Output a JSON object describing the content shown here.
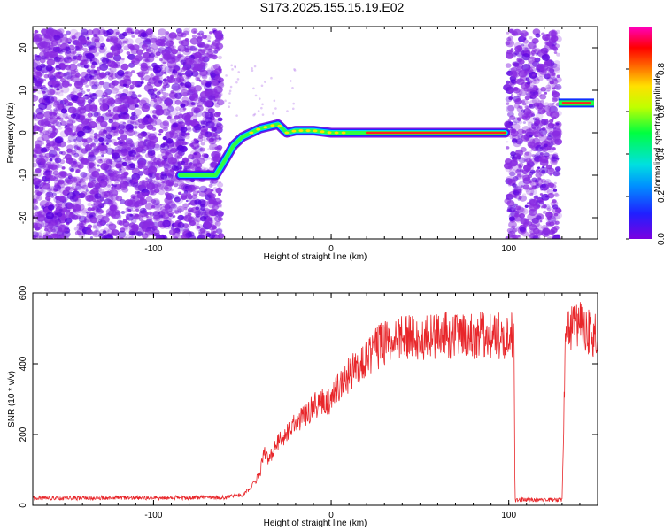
{
  "figure_title": "S173.2025.155.15.19.E02",
  "colors": {
    "scatter_purple": "#8a2be2",
    "snr_line": "#e8262a"
  },
  "chart_data": [
    {
      "type": "heatmap",
      "title": "S173.2025.155.15.19.E02",
      "xlabel": "Height of straight line (km)",
      "ylabel": "Frequency (Hz)",
      "xlim": [
        -168,
        150
      ],
      "ylim": [
        -25,
        25
      ],
      "x_ticks": [
        -100,
        0,
        100
      ],
      "y_ticks": [
        -20,
        -10,
        0,
        10,
        20
      ],
      "colorbar": {
        "label": "Normalized spectral amplitude",
        "range": [
          0.0,
          1.0
        ],
        "ticks": [
          0.0,
          0.2,
          0.4,
          0.6,
          0.8
        ],
        "colormap": "rainbow (purple → blue → cyan → green → yellow → red → magenta)"
      },
      "noise_regions": [
        {
          "x_range": [
            -168,
            -62
          ],
          "y_range": [
            -25,
            24
          ]
        },
        {
          "x_range": [
            99,
            128
          ],
          "y_range": [
            -25,
            24
          ]
        }
      ],
      "ridge": {
        "x": [
          -85,
          -65,
          -62,
          -55,
          -50,
          -45,
          -40,
          -35,
          -30,
          -25,
          -20,
          -10,
          0,
          20,
          40,
          60,
          80,
          98
        ],
        "y": [
          -10,
          -10,
          -8,
          -3,
          -1,
          0,
          1,
          1.5,
          2,
          0,
          0.5,
          0.5,
          0,
          0,
          0,
          0,
          0,
          0
        ]
      },
      "tail_segment": {
        "x_range": [
          128,
          148
        ],
        "y": 7
      }
    },
    {
      "type": "line",
      "xlabel": "Height of straight line (km)",
      "ylabel": "SNR (10 * v/v)",
      "xlim": [
        -168,
        150
      ],
      "ylim": [
        0,
        600
      ],
      "x_ticks": [
        -100,
        0,
        100
      ],
      "y_ticks": [
        0,
        200,
        400,
        600
      ],
      "series": [
        {
          "color": "#e8262a",
          "x": [
            -168,
            -60,
            -50,
            -45,
            -40,
            -38,
            -35,
            -30,
            -20,
            -10,
            0,
            10,
            20,
            30,
            40,
            60,
            80,
            100,
            103,
            103.5,
            130,
            132,
            140,
            150
          ],
          "y": [
            20,
            22,
            30,
            50,
            90,
            150,
            130,
            180,
            230,
            280,
            300,
            370,
            420,
            460,
            470,
            480,
            480,
            480,
            480,
            15,
            15,
            490,
            510,
            480
          ]
        }
      ]
    }
  ]
}
